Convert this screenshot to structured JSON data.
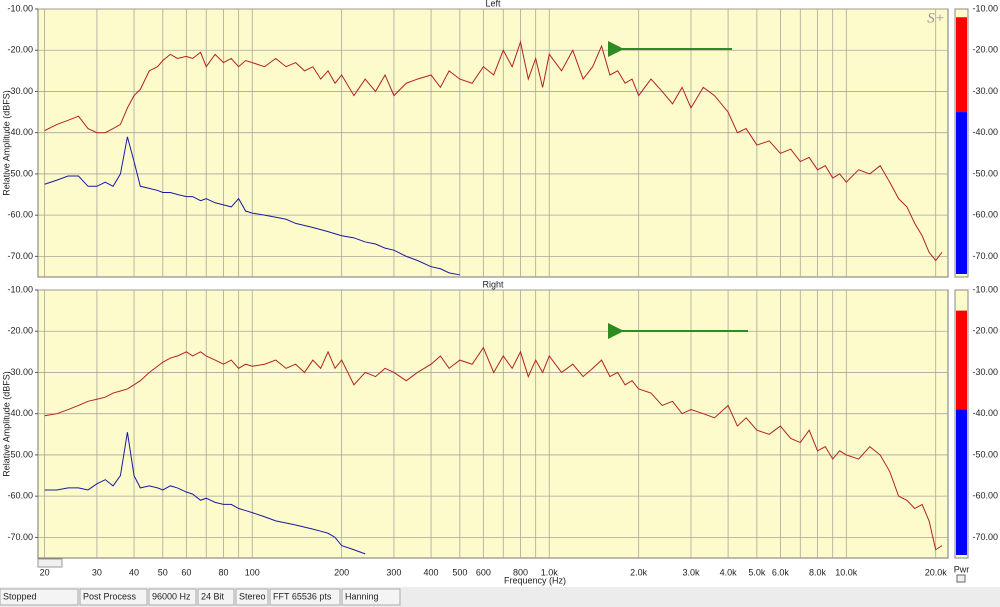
{
  "logo": "S+",
  "status_bar": [
    "Stopped",
    "Post Process",
    "96000 Hz",
    "24 Bit",
    "Stereo",
    "FFT 65536 pts",
    "Hanning"
  ],
  "chart_data": [
    {
      "type": "line",
      "title": "Left",
      "y_label": "Relative Amplitude (dBFS)",
      "xscale": "log",
      "grid": true,
      "xlim": [
        19,
        22000
      ],
      "ylim": [
        -75,
        -10
      ],
      "xticks": [
        20,
        30,
        40,
        50,
        60,
        80,
        100,
        200,
        300,
        400,
        500,
        600,
        800,
        1000,
        2000,
        3000,
        4000,
        5000,
        6000,
        8000,
        10000,
        20000
      ],
      "xticks_minor": [
        70,
        90,
        700,
        900,
        7000,
        9000
      ],
      "yticks": [
        {
          "value": -10,
          "label": "-10.00"
        },
        {
          "value": -20,
          "label": "-20.00"
        },
        {
          "value": -30,
          "label": "-30.00"
        },
        {
          "value": -40,
          "label": "-40.00"
        },
        {
          "value": -50,
          "label": "-50.00"
        },
        {
          "value": -60,
          "label": "-60.00"
        },
        {
          "value": -70,
          "label": "-70.00"
        }
      ],
      "meter": {
        "peak": -12,
        "level": -35
      },
      "x": [
        20,
        22,
        24,
        26,
        28,
        30,
        32,
        34,
        36,
        38,
        40,
        42,
        45,
        48,
        50,
        53,
        56,
        60,
        63,
        67,
        70,
        75,
        80,
        85,
        90,
        95,
        100,
        110,
        120,
        130,
        140,
        150,
        160,
        170,
        180,
        190,
        200,
        220,
        240,
        260,
        280,
        300,
        330,
        360,
        400,
        430,
        460,
        500,
        550,
        600,
        650,
        700,
        750,
        800,
        850,
        900,
        950,
        1000,
        1100,
        1200,
        1300,
        1400,
        1500,
        1600,
        1700,
        1800,
        1900,
        2000,
        2200,
        2400,
        2600,
        2800,
        3000,
        3300,
        3600,
        4000,
        4300,
        4600,
        5000,
        5500,
        6000,
        6500,
        7000,
        7500,
        8000,
        8500,
        9000,
        9500,
        10000,
        11000,
        12000,
        13000,
        14000,
        15000,
        16000,
        17000,
        18000,
        19000,
        20000,
        21000
      ],
      "series": [
        {
          "color": "#b22222",
          "values": [
            -39.5,
            -38,
            -37,
            -36,
            -39,
            -40,
            -40,
            -39,
            -38,
            -34,
            -31,
            -29.5,
            -25,
            -24,
            -22.5,
            -21,
            -22,
            -21.5,
            -22,
            -20.5,
            -24,
            -21,
            -23,
            -22,
            -24,
            -22.5,
            -23,
            -24,
            -22,
            -24,
            -23,
            -25,
            -24,
            -27,
            -25,
            -28,
            -26,
            -31,
            -27,
            -30,
            -26,
            -31,
            -28,
            -27,
            -26,
            -29,
            -25,
            -27,
            -28,
            -24,
            -26,
            -20,
            -24,
            -18,
            -27,
            -22,
            -29,
            -21,
            -25,
            -20,
            -27,
            -24,
            -19,
            -26,
            -25,
            -28,
            -27,
            -31,
            -27,
            -30,
            -33,
            -29,
            -34,
            -29,
            -31,
            -35,
            -40,
            -39,
            -43,
            -42,
            -45,
            -44,
            -47,
            -46,
            -49,
            -48,
            -51,
            -50,
            -52,
            -49,
            -50,
            -48,
            -52,
            -56,
            -58,
            -62,
            -65,
            -69,
            -71,
            -69
          ]
        },
        {
          "color": "#1a1aa0",
          "values": [
            -52.5,
            -51.5,
            -50.5,
            -50.5,
            -53,
            -53,
            -52,
            -53,
            -50,
            -41,
            -47,
            -53,
            -53.5,
            -54,
            -54.5,
            -54.5,
            -55,
            -55.5,
            -55.5,
            -56.5,
            -56,
            -57,
            -57.5,
            -58,
            -56,
            -59,
            -59.5,
            -60,
            -60.5,
            -61,
            -62,
            -62.5,
            -63,
            -63.5,
            -64,
            -64.5,
            -65,
            -65.5,
            -66.5,
            -67,
            -68,
            -68.5,
            -70,
            -71,
            -72.5,
            -73,
            -74,
            -74.5,
            null,
            null,
            null,
            null,
            null,
            null,
            null,
            null,
            null,
            null,
            null,
            null,
            null,
            null,
            null,
            null,
            null,
            null,
            null,
            null,
            null,
            null,
            null,
            null,
            null,
            null,
            null,
            null,
            null,
            null,
            null,
            null,
            null,
            null,
            null,
            null,
            null,
            null,
            null,
            null,
            null,
            null,
            null,
            null,
            null,
            null,
            null,
            null,
            null,
            null,
            null,
            null
          ]
        }
      ]
    },
    {
      "type": "line",
      "title": "Right",
      "y_label": "Relative Amplitude (dBFS)",
      "x_label": "Frequency (Hz)",
      "xscale": "log",
      "grid": true,
      "meter_label": "Pwr",
      "xlim": [
        19,
        22000
      ],
      "ylim": [
        -75,
        -10
      ],
      "xticks": [
        20,
        30,
        40,
        50,
        60,
        80,
        100,
        200,
        300,
        400,
        500,
        600,
        800,
        {
          "value": 1000,
          "label": "1.0k"
        },
        {
          "value": 2000,
          "label": "2.0k"
        },
        {
          "value": 3000,
          "label": "3.0k"
        },
        {
          "value": 4000,
          "label": "4.0k"
        },
        {
          "value": 5000,
          "label": "5.0k"
        },
        {
          "value": 6000,
          "label": "6.0k"
        },
        {
          "value": 8000,
          "label": "8.0k"
        },
        {
          "value": 10000,
          "label": "10.0k"
        },
        {
          "value": 20000,
          "label": "20.0k"
        }
      ],
      "xticks_minor": [
        70,
        90,
        700,
        900,
        7000,
        9000
      ],
      "yticks": [
        {
          "value": -10,
          "label": "-10.00"
        },
        {
          "value": -20,
          "label": "-20.00"
        },
        {
          "value": -30,
          "label": "-30.00"
        },
        {
          "value": -40,
          "label": "-40.00"
        },
        {
          "value": -50,
          "label": "-50.00"
        },
        {
          "value": -60,
          "label": "-60.00"
        },
        {
          "value": -70,
          "label": "-70.00"
        }
      ],
      "meter": {
        "peak": -15,
        "level": -39
      },
      "x": [
        20,
        22,
        24,
        26,
        28,
        30,
        32,
        34,
        36,
        38,
        40,
        42,
        45,
        48,
        50,
        53,
        56,
        60,
        63,
        67,
        70,
        75,
        80,
        85,
        90,
        95,
        100,
        110,
        120,
        130,
        140,
        150,
        160,
        170,
        180,
        190,
        200,
        220,
        240,
        260,
        280,
        300,
        330,
        360,
        400,
        430,
        460,
        500,
        550,
        600,
        650,
        700,
        750,
        800,
        850,
        900,
        950,
        1000,
        1100,
        1200,
        1300,
        1400,
        1500,
        1600,
        1700,
        1800,
        1900,
        2000,
        2200,
        2400,
        2600,
        2800,
        3000,
        3300,
        3600,
        4000,
        4300,
        4600,
        5000,
        5500,
        6000,
        6500,
        7000,
        7500,
        8000,
        8500,
        9000,
        9500,
        10000,
        11000,
        12000,
        13000,
        14000,
        15000,
        16000,
        17000,
        18000,
        19000,
        20000,
        21000
      ],
      "series": [
        {
          "color": "#b22222",
          "values": [
            -40.5,
            -40,
            -39,
            -38,
            -37,
            -36.5,
            -36,
            -35,
            -34.5,
            -34,
            -33,
            -32,
            -30,
            -28.5,
            -27.5,
            -26.5,
            -26,
            -25,
            -26,
            -25,
            -26,
            -27,
            -28,
            -27,
            -29,
            -28,
            -28.5,
            -28,
            -27,
            -29,
            -28,
            -30,
            -27,
            -29,
            -25,
            -29,
            -27,
            -33,
            -30,
            -31,
            -29,
            -30,
            -32,
            -30,
            -28,
            -26,
            -29,
            -27,
            -28,
            -24,
            -30,
            -26,
            -29,
            -25,
            -31,
            -27,
            -30,
            -26,
            -30,
            -28,
            -31,
            -29,
            -27,
            -31,
            -30,
            -33,
            -32,
            -34,
            -35,
            -38,
            -37,
            -40,
            -39,
            -40,
            -41,
            -38,
            -43,
            -41,
            -44,
            -45,
            -43,
            -46,
            -47,
            -44,
            -49,
            -48,
            -51,
            -49,
            -50,
            -51,
            -48,
            -50,
            -54,
            -60,
            -61,
            -63,
            -62,
            -66,
            -73,
            -72
          ]
        },
        {
          "color": "#1a1aa0",
          "values": [
            -58.5,
            -58.5,
            -58,
            -58,
            -58.5,
            -57,
            -56,
            -57.5,
            -55,
            -44.5,
            -55,
            -58,
            -57.5,
            -58,
            -58.5,
            -57.5,
            -58,
            -59,
            -59.5,
            -61,
            -60.5,
            -61.5,
            -62,
            -62,
            -63,
            -63.5,
            -64,
            -65,
            -66,
            -66.5,
            -67,
            -67.5,
            -68,
            -68.5,
            -69,
            -70,
            -72,
            -73,
            -74,
            null,
            null,
            null,
            null,
            null,
            null,
            null,
            null,
            null,
            null,
            null,
            null,
            null,
            null,
            null,
            null,
            null,
            null,
            null,
            null,
            null,
            null,
            null,
            null,
            null,
            null,
            null,
            null,
            null,
            null,
            null,
            null,
            null,
            null,
            null,
            null,
            null,
            null,
            null,
            null,
            null,
            null,
            null,
            null,
            null,
            null,
            null,
            null,
            null,
            null,
            null,
            null,
            null,
            null,
            null,
            null,
            null,
            null,
            null,
            null,
            null
          ]
        }
      ]
    }
  ]
}
